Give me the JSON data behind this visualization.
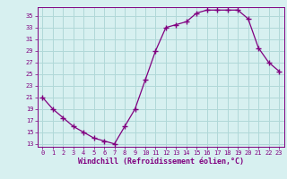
{
  "x": [
    0,
    1,
    2,
    3,
    4,
    5,
    6,
    7,
    8,
    9,
    10,
    11,
    12,
    13,
    14,
    15,
    16,
    17,
    18,
    19,
    20,
    21,
    22,
    23
  ],
  "y": [
    21,
    19,
    17.5,
    16,
    15,
    14,
    13.5,
    13,
    16,
    19,
    24,
    29,
    33,
    33.5,
    34,
    35.5,
    36,
    36,
    36,
    36,
    34.5,
    29.5,
    27,
    25.5
  ],
  "line_color": "#800080",
  "marker": "+",
  "marker_size": 4,
  "bg_color": "#d7f0f0",
  "grid_color": "#b0d8d8",
  "xlabel": "Windchill (Refroidissement éolien,°C)",
  "xlabel_color": "#800080",
  "tick_color": "#800080",
  "yticks": [
    13,
    15,
    17,
    19,
    21,
    23,
    25,
    27,
    29,
    31,
    33,
    35
  ],
  "ylim": [
    12.5,
    36.5
  ],
  "xlim": [
    -0.5,
    23.5
  ],
  "xticks": [
    0,
    1,
    2,
    3,
    4,
    5,
    6,
    7,
    8,
    9,
    10,
    11,
    12,
    13,
    14,
    15,
    16,
    17,
    18,
    19,
    20,
    21,
    22,
    23
  ]
}
